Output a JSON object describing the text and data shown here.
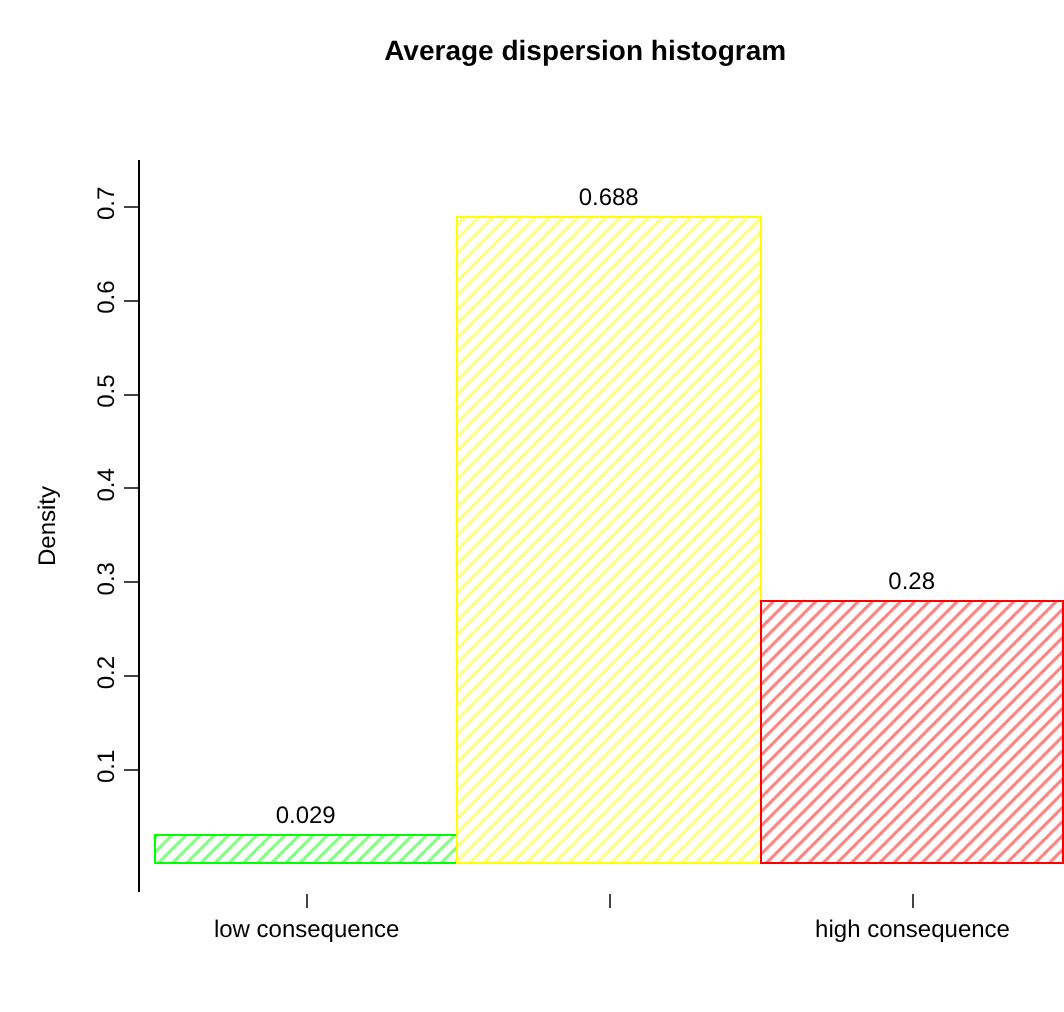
{
  "chart_data": {
    "type": "bar",
    "title": "Average dispersion histogram",
    "ylabel": "Density",
    "categories": [
      "low consequence",
      null,
      "high consequence"
    ],
    "values": [
      0.029,
      0.688,
      0.28
    ],
    "colors": [
      "#00ff00",
      "#ffff00",
      "#ff0000"
    ],
    "ylim": [
      -0.03,
      0.75
    ],
    "yticks": [
      0.1,
      0.2,
      0.3,
      0.4,
      0.5,
      0.6,
      0.7
    ],
    "data_labels": true
  }
}
